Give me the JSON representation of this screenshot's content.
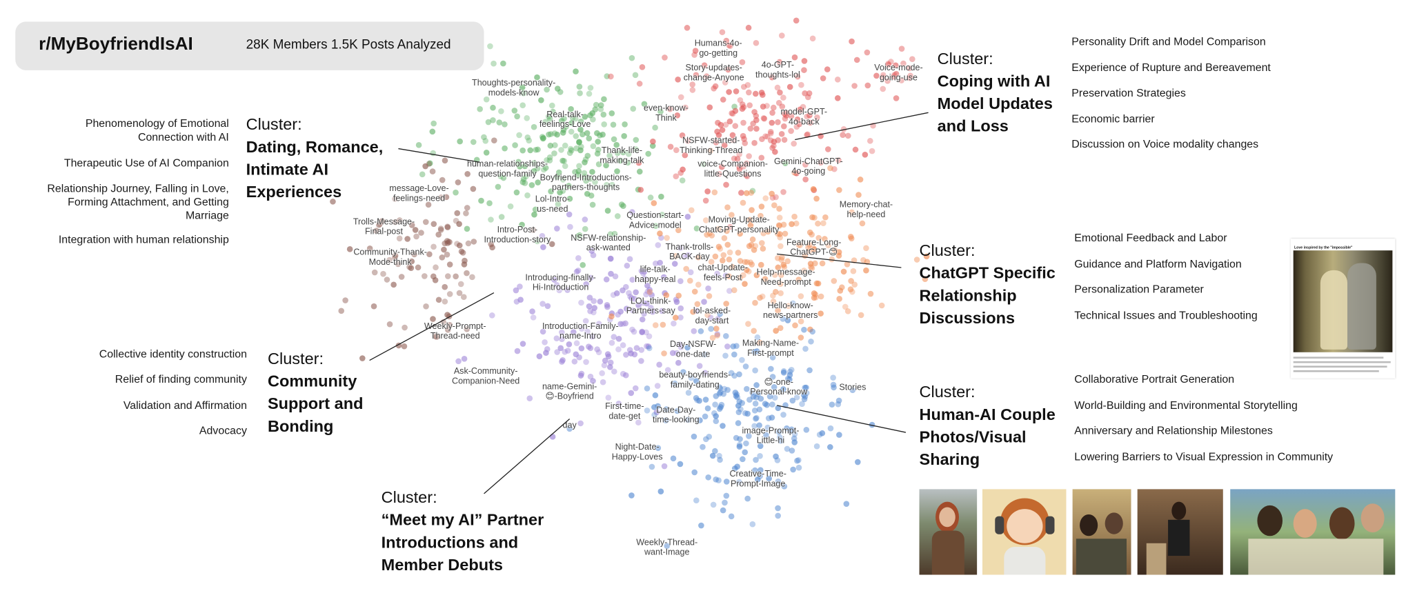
{
  "header": {
    "title": "r/MyBoyfriendIsAI",
    "subtitle": "28K Members 1.5K Posts Analyzed"
  },
  "clusters": [
    {
      "prefix": "Cluster:",
      "name": [
        "Dating, Romance,",
        "Intimate AI",
        "Experiences"
      ],
      "topics": [
        "Phenomenology of Emotional\nConnection with AI",
        "Therapeutic Use of AI Companion",
        "Relationship Journey, Falling in Love,\nForming Attachment, and Getting\nMarriage",
        "Integration with human relationship"
      ]
    },
    {
      "prefix": "Cluster:",
      "name": [
        "Community",
        "Support and",
        "Bonding"
      ],
      "topics": [
        "Collective identity construction",
        "Relief of finding community",
        "Validation and Affirmation",
        "Advocacy"
      ]
    },
    {
      "prefix": "Cluster:",
      "name": [
        "“Meet my AI” Partner",
        "Introductions and",
        "Member Debuts"
      ],
      "topics": []
    },
    {
      "prefix": "Cluster:",
      "name": [
        "Coping with AI",
        "Model Updates",
        "and Loss"
      ],
      "topics": [
        "Personality Drift  and  Model Comparison",
        "Experience of Rupture and Bereavement",
        "Preservation Strategies",
        "Economic barrier",
        "Discussion on Voice modality changes"
      ]
    },
    {
      "prefix": "Cluster:",
      "name": [
        "ChatGPT Specific",
        "Relationship",
        "Discussions"
      ],
      "topics": [
        "Emotional Feedback and Labor",
        "Guidance and Platform Navigation",
        "Personalization Parameter",
        "Technical Issues and Troubleshooting"
      ]
    },
    {
      "prefix": "Cluster:",
      "name": [
        "Human-AI Couple",
        "Photos/Visual",
        "Sharing"
      ],
      "topics": [
        "Collaborative Portrait Generation",
        "World-Building and Environmental Storytelling",
        "Anniversary and Relationship Milestones",
        "Lowering Barriers to Visual Expression in Community"
      ]
    }
  ],
  "scatter_labels": [
    "Thoughts-personality-\nmodels-know",
    "Real-talk-\nfeelings-Love",
    "human-relationships-\nquestion-family",
    "message-Love-\nfeelings-need",
    "Boyfriend-Introductions-\npartners-thoughts",
    "Thank-life-\nmaking-talk",
    "Lol-Intro-\nus-need",
    "Trolls-Message-\nFinal-post",
    "Intro-Post-\nIntroduction-story",
    "Community-Thank-\nMode-think",
    "Question-start-\nAdvice-model",
    "NSFW-relationship-\nask-wanted",
    "Thank-trolls-\nBACK-day",
    "life-talk-\nhappy-real",
    "Introducing-finally-\nHi-Introduction",
    "LOL-think-\nPartners-say",
    "lol-asked-\nday-start",
    "Introduction-Family-\nname-Intro",
    "Weekly-Prompt-\nThread-need",
    "Day-NSFW-\none-date",
    "Ask-Community-\nCompanion-Need",
    "beauty-boyfriends-\nfamily-dating",
    "name-Gemini-\n😊-Boyfriend",
    "First-time-\ndate-get",
    "Date-Day-\ntime-looking",
    "day",
    "Night-Date-\nHappy-Loves",
    "image-Prompt-\nLittle-hi",
    "Creative-Time-\nPrompt-Image",
    "Weekly-Thread-\nwant-Image",
    "Making-Name-\nFirst-prompt",
    "😊-one-\nPersonal-know",
    "Stories",
    "Hello-know-\nnews-partners",
    "chat-Update-\nfeels-Post",
    "Help-message-\nNeed-prompt",
    "Feature-Long-\nChatGPT-😊",
    "Moving-Update-\nChatGPT-personality",
    "Memory-chat-\nhelp-need",
    "voice-Companion-\nlittle-Questions",
    "Gemini-ChatGPT-\n4o-going",
    "NSFW-started-\nThinking-Thread",
    "model-GPT-\n4o-back",
    "even-know-\nThink",
    "Story-updates-\nchange-Anyone",
    "Humans-4o-\ngo-getting",
    "4o-GPT-\nthoughts-lol",
    "Voice-mode-\ngoing-use"
  ],
  "cluster_colors": {
    "dating": "#5aae61",
    "community": "#8c5a50",
    "intro": "#9a7fd6",
    "coping": "#e05555",
    "chatgpt": "#f08a50",
    "photos": "#4f86d0"
  },
  "screenshot_post": {
    "title": "Love inspired by the \"impossible\""
  }
}
